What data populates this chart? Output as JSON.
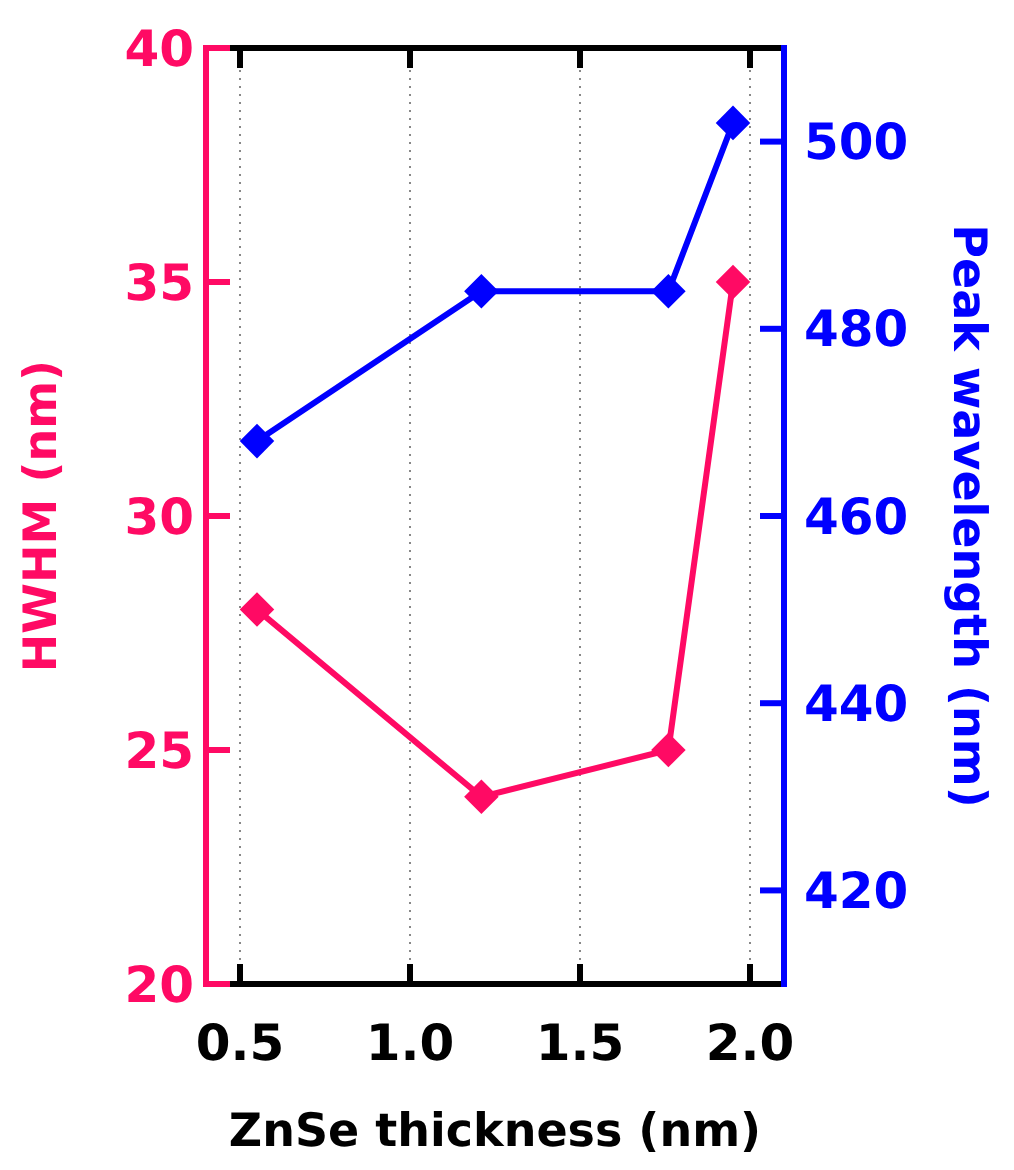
{
  "chart_data": {
    "type": "line",
    "xlabel": "ZnSe thickness (nm)",
    "ylabel": "HWHM (nm)",
    "y2label": "Peak wavelength (nm)",
    "xlim": [
      0.4,
      2.1
    ],
    "xticks": [
      0.5,
      {
        "value": 1,
        "label": "1.0"
      },
      1.5,
      {
        "value": 2,
        "label": "2.0"
      }
    ],
    "ylim": [
      20,
      40
    ],
    "yticks": [
      20,
      25,
      30,
      35,
      40
    ],
    "y2lim": [
      410,
      510
    ],
    "y2ticks": [
      420,
      440,
      460,
      480,
      500
    ],
    "grid": "x",
    "marker": "diamond",
    "line_style": "solid",
    "series": [
      {
        "color": "#ff0a64",
        "x": [
          0.55,
          1.21,
          1.76,
          1.95
        ],
        "values": [
          28,
          24,
          25,
          35
        ]
      },
      {
        "color": "#0000ff",
        "axis": "y2",
        "x": [
          0.55,
          1.21,
          1.76,
          1.95
        ],
        "values": [
          468,
          484,
          484,
          502
        ]
      }
    ]
  }
}
